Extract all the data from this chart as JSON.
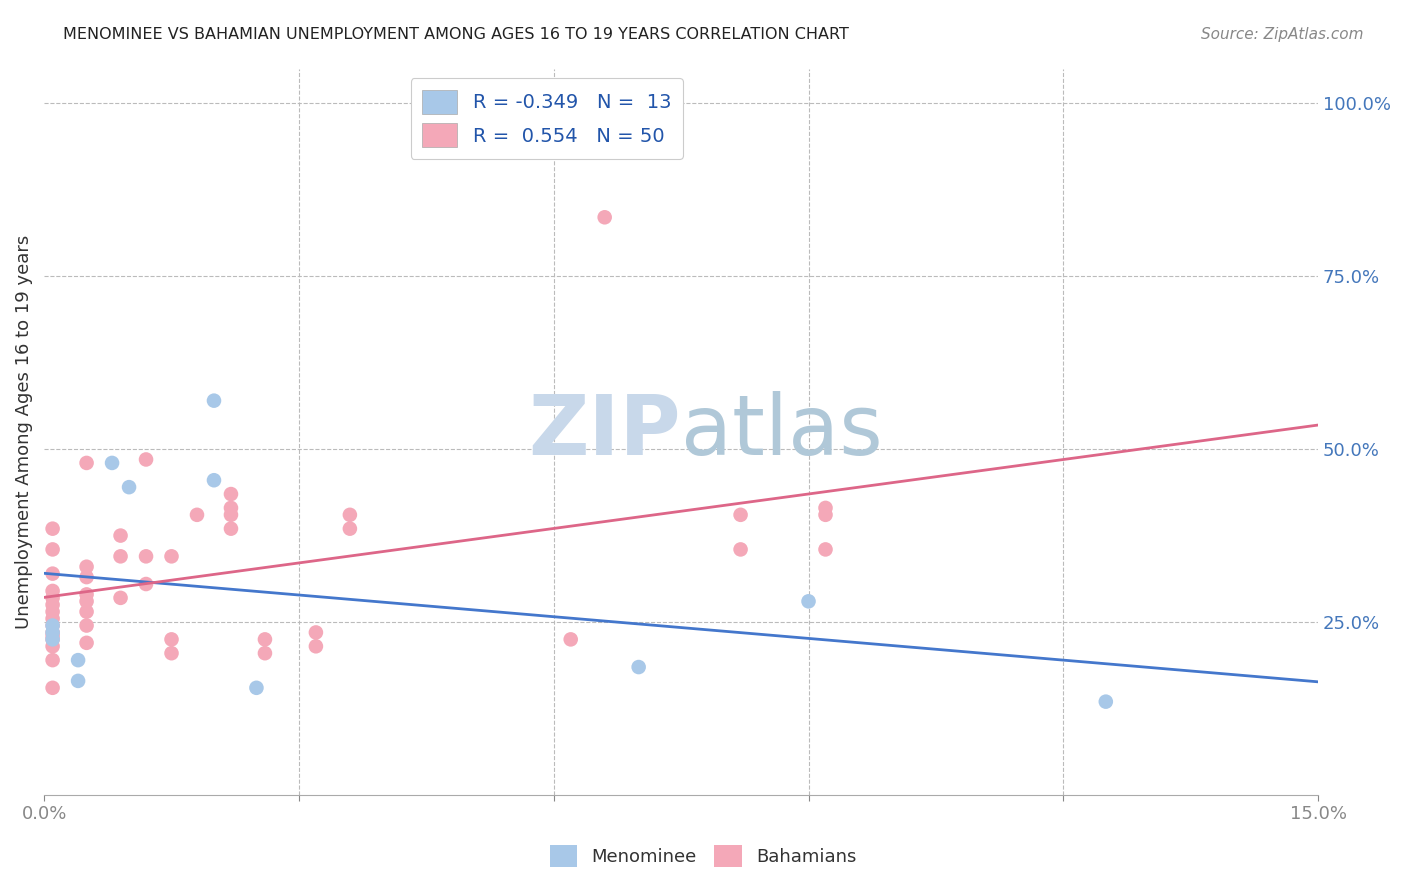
{
  "title": "MENOMINEE VS BAHAMIAN UNEMPLOYMENT AMONG AGES 16 TO 19 YEARS CORRELATION CHART",
  "source": "Source: ZipAtlas.com",
  "ylabel": "Unemployment Among Ages 16 to 19 years",
  "xlim": [
    0.0,
    0.15
  ],
  "ylim": [
    0.0,
    1.05
  ],
  "menominee_color": "#a8c8e8",
  "bahamian_color": "#f4a8b8",
  "menominee_line_color": "#4477cc",
  "bahamian_line_color": "#dd6688",
  "watermark_color": "#d8e8f4",
  "menominee_x": [
    0.001,
    0.001,
    0.001,
    0.004,
    0.004,
    0.008,
    0.01,
    0.02,
    0.02,
    0.025,
    0.07,
    0.09,
    0.125
  ],
  "menominee_y": [
    0.225,
    0.235,
    0.245,
    0.195,
    0.165,
    0.48,
    0.445,
    0.57,
    0.455,
    0.155,
    0.185,
    0.28,
    0.135
  ],
  "bahamian_x": [
    0.001,
    0.001,
    0.001,
    0.001,
    0.001,
    0.001,
    0.001,
    0.001,
    0.001,
    0.001,
    0.001,
    0.001,
    0.001,
    0.001,
    0.001,
    0.005,
    0.005,
    0.005,
    0.005,
    0.005,
    0.005,
    0.005,
    0.005,
    0.009,
    0.009,
    0.009,
    0.012,
    0.012,
    0.012,
    0.015,
    0.015,
    0.015,
    0.018,
    0.022,
    0.022,
    0.022,
    0.022,
    0.026,
    0.026,
    0.032,
    0.032,
    0.036,
    0.036,
    0.062,
    0.066,
    0.082,
    0.082,
    0.092,
    0.092,
    0.092
  ],
  "bahamian_y": [
    0.155,
    0.195,
    0.215,
    0.225,
    0.23,
    0.235,
    0.245,
    0.255,
    0.265,
    0.275,
    0.285,
    0.295,
    0.32,
    0.355,
    0.385,
    0.22,
    0.245,
    0.265,
    0.28,
    0.29,
    0.315,
    0.33,
    0.48,
    0.285,
    0.345,
    0.375,
    0.305,
    0.345,
    0.485,
    0.205,
    0.225,
    0.345,
    0.405,
    0.385,
    0.405,
    0.415,
    0.435,
    0.205,
    0.225,
    0.215,
    0.235,
    0.385,
    0.405,
    0.225,
    0.835,
    0.355,
    0.405,
    0.355,
    0.405,
    0.415
  ]
}
